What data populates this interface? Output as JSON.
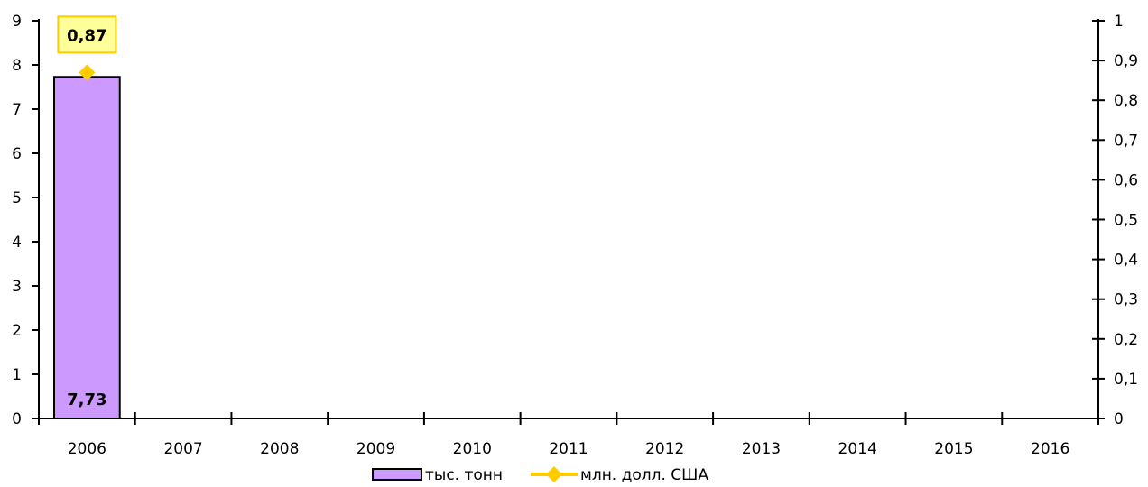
{
  "chart_data": {
    "type": "bar",
    "categories": [
      "2006",
      "2007",
      "2008",
      "2009",
      "2010",
      "2011",
      "2012",
      "2013",
      "2014",
      "2015",
      "2016"
    ],
    "series": [
      {
        "name": "тыс. тонн",
        "kind": "bar",
        "axis": "left",
        "color": "#cc99ff",
        "values": [
          7.73,
          null,
          null,
          null,
          null,
          null,
          null,
          null,
          null,
          null,
          null
        ],
        "labels": [
          "7,73",
          "",
          "",
          "",
          "",
          "",
          "",
          "",
          "",
          "",
          ""
        ]
      },
      {
        "name": "млн. долл. США",
        "kind": "line",
        "axis": "right",
        "color": "#ffcc00",
        "values": [
          0.87,
          null,
          null,
          null,
          null,
          null,
          null,
          null,
          null,
          null,
          null
        ],
        "labels": [
          "0,87",
          "",
          "",
          "",
          "",
          "",
          "",
          "",
          "",
          "",
          ""
        ]
      }
    ],
    "y_left": {
      "range": [
        0,
        9
      ],
      "ticks": [
        "0",
        "1",
        "2",
        "3",
        "4",
        "5",
        "6",
        "7",
        "8",
        "9"
      ]
    },
    "y_right": {
      "range": [
        0,
        1
      ],
      "ticks": [
        "0",
        "0,1",
        "0,2",
        "0,3",
        "0,4",
        "0,5",
        "0,6",
        "0,7",
        "0,8",
        "0,9",
        "1"
      ]
    },
    "grid": false,
    "legend": "bottom-center",
    "line_label_box_color": "#ffff99",
    "line_label_border_color": "#ffcc00"
  }
}
